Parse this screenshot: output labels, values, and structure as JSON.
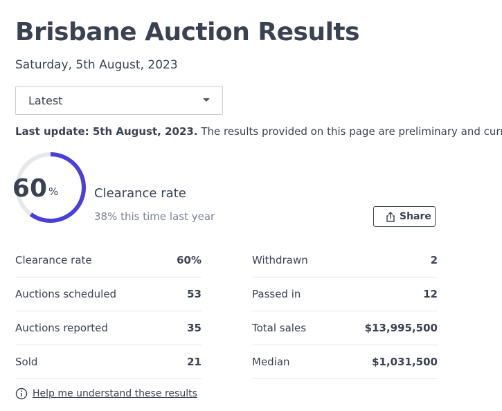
{
  "header": {
    "title": "Brisbane Auction Results",
    "date": "Saturday, 5th August, 2023"
  },
  "dropdown": {
    "selected": "Latest"
  },
  "update": {
    "bold": "Last update: 5th August, 2023.",
    "text": "The results provided on this page are preliminary and current at the"
  },
  "clearance": {
    "value": 60,
    "unit": "%",
    "label": "Clearance rate",
    "comparison": "38% this time last year"
  },
  "share": {
    "label": "Share"
  },
  "table": {
    "left": [
      [
        "Clearance rate",
        "60%"
      ],
      [
        "Auctions scheduled",
        "53"
      ],
      [
        "Auctions reported",
        "35"
      ],
      [
        "Sold",
        "21"
      ]
    ],
    "right": [
      [
        "Withdrawn",
        "2"
      ],
      [
        "Passed in",
        "12"
      ],
      [
        "Total sales",
        "$13,995,500"
      ],
      [
        "Median",
        "$1,031,500"
      ]
    ]
  },
  "help": {
    "link": "Help me understand these results"
  }
}
